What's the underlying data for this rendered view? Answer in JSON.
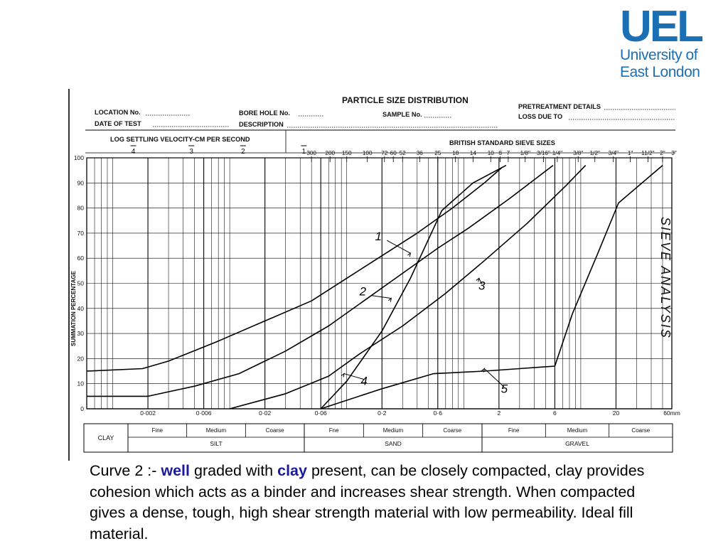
{
  "logo": {
    "mark": "UEL",
    "line1": "University of",
    "line2": "East London"
  },
  "caption": {
    "prefix": "Curve 2 :- ",
    "word1": "well",
    "mid": " graded with ",
    "word2": "clay",
    "rest": " present, can be closely compacted, clay provides cohesion which acts as a binder and increases shear strength. When compacted gives a dense, tough, high shear strength material with low permeability. Ideal fill material."
  },
  "form": {
    "title": "PARTICLE SIZE DISTRIBUTION",
    "location": "LOCATION No.",
    "date": "DATE OF TEST",
    "borehole": "BORE HOLE No.",
    "description": "DESCRIPTION",
    "sample": "SAMPLE No.",
    "pretreatment": "PRETREATMENT DETAILS",
    "loss": "LOSS DUE TO",
    "log_velocity_label": "LOG SETTLING VELOCITY-CM PER SECOND",
    "sieve_label": "BRITISH STANDARD SIEVE SIZES",
    "handwritten_side": "SIEVE ANALYSIS"
  },
  "chart_data": {
    "type": "line",
    "title": "PARTICLE SIZE DISTRIBUTION",
    "xlabel": "",
    "ylabel": "SUMMATION PERCENTAGE",
    "x_scale": "log",
    "x_unit": "mm",
    "xlim": [
      0.0006,
      60
    ],
    "ylim": [
      0,
      100
    ],
    "grid": true,
    "x_tick_labels": [
      {
        "value": 0.002,
        "label": "0·002"
      },
      {
        "value": 0.006,
        "label": "0·006"
      },
      {
        "value": 0.02,
        "label": "0·02"
      },
      {
        "value": 0.06,
        "label": "0·06"
      },
      {
        "value": 0.2,
        "label": "0·2"
      },
      {
        "value": 0.6,
        "label": "0·6"
      },
      {
        "value": 2,
        "label": "2"
      },
      {
        "value": 6,
        "label": "6"
      },
      {
        "value": 20,
        "label": "20"
      },
      {
        "value": 60,
        "label": "60mm"
      }
    ],
    "y_ticks": [
      0,
      10,
      20,
      30,
      40,
      50,
      60,
      70,
      80,
      90,
      100
    ],
    "log_velocity_ticks": [
      {
        "value": 0.0015,
        "label": "4"
      },
      {
        "value": 0.0047,
        "label": "3"
      },
      {
        "value": 0.013,
        "label": "2"
      },
      {
        "value": 0.043,
        "label": "1"
      }
    ],
    "sieve_ticks": [
      {
        "value": 0.05,
        "label": "300"
      },
      {
        "value": 0.072,
        "label": "200"
      },
      {
        "value": 0.1,
        "label": "150"
      },
      {
        "value": 0.15,
        "label": "100"
      },
      {
        "value": 0.21,
        "label": "72"
      },
      {
        "value": 0.25,
        "label": "60"
      },
      {
        "value": 0.3,
        "label": "52"
      },
      {
        "value": 0.42,
        "label": "36"
      },
      {
        "value": 0.6,
        "label": "25"
      },
      {
        "value": 0.85,
        "label": "18"
      },
      {
        "value": 1.2,
        "label": "14"
      },
      {
        "value": 1.7,
        "label": "10"
      },
      {
        "value": 2.05,
        "label": "8"
      },
      {
        "value": 2.4,
        "label": "7"
      },
      {
        "value": 3.35,
        "label": "1/8\""
      },
      {
        "value": 4.8,
        "label": "3/16\""
      },
      {
        "value": 6.3,
        "label": "1/4\""
      },
      {
        "value": 9.5,
        "label": "3/8\""
      },
      {
        "value": 13.2,
        "label": "1/2\""
      },
      {
        "value": 19,
        "label": "3/4\""
      },
      {
        "value": 26.5,
        "label": "1\""
      },
      {
        "value": 37.5,
        "label": "11/2\""
      },
      {
        "value": 50,
        "label": "2\""
      },
      {
        "value": 75,
        "label": "3\""
      }
    ],
    "series": [
      {
        "name": "1",
        "points": [
          [
            0.0006,
            15
          ],
          [
            0.0018,
            16
          ],
          [
            0.003,
            19
          ],
          [
            0.008,
            27
          ],
          [
            0.02,
            35
          ],
          [
            0.05,
            43
          ],
          [
            0.1,
            52
          ],
          [
            0.2,
            61
          ],
          [
            0.4,
            70
          ],
          [
            0.8,
            80
          ],
          [
            1.5,
            90
          ],
          [
            2.1,
            96
          ]
        ]
      },
      {
        "name": "2",
        "points": [
          [
            0.0006,
            5
          ],
          [
            0.002,
            5
          ],
          [
            0.005,
            9
          ],
          [
            0.012,
            14
          ],
          [
            0.03,
            23
          ],
          [
            0.07,
            33
          ],
          [
            0.15,
            44
          ],
          [
            0.3,
            54
          ],
          [
            0.6,
            64
          ],
          [
            1.1,
            72
          ],
          [
            2.5,
            84
          ],
          [
            5.8,
            97
          ]
        ]
      },
      {
        "name": "3",
        "points": [
          [
            0.01,
            0
          ],
          [
            0.03,
            6
          ],
          [
            0.07,
            13
          ],
          [
            0.13,
            22
          ],
          [
            0.3,
            33
          ],
          [
            0.7,
            46
          ],
          [
            1.5,
            59
          ],
          [
            3.5,
            74
          ],
          [
            7.5,
            89
          ],
          [
            11,
            97
          ]
        ]
      },
      {
        "name": "4",
        "points": [
          [
            0.06,
            0
          ],
          [
            0.1,
            11
          ],
          [
            0.2,
            31
          ],
          [
            0.35,
            52
          ],
          [
            0.65,
            79
          ],
          [
            1.2,
            90
          ],
          [
            2.3,
            97
          ]
        ]
      },
      {
        "name": "5",
        "points": [
          [
            0.06,
            0
          ],
          [
            0.2,
            8
          ],
          [
            0.55,
            14
          ],
          [
            1.5,
            15
          ],
          [
            3,
            16
          ],
          [
            6,
            17
          ],
          [
            8.5,
            38
          ],
          [
            14,
            62
          ],
          [
            21,
            82
          ],
          [
            50,
            97
          ]
        ]
      }
    ],
    "annotations": [
      {
        "text": "1",
        "target": [
          0.35,
          62
        ]
      },
      {
        "text": "2",
        "target": [
          0.24,
          44
        ]
      },
      {
        "text": "3",
        "target": [
          1.35,
          52
        ]
      },
      {
        "text": "4",
        "target": [
          0.095,
          14
        ]
      },
      {
        "text": "5",
        "target": [
          1.5,
          16
        ]
      }
    ]
  },
  "classification": {
    "fractions": [
      {
        "name": "CLAY",
        "subs": []
      },
      {
        "name": "SILT",
        "subs": [
          "Fine",
          "Medium",
          "Coarse"
        ]
      },
      {
        "name": "SAND",
        "subs": [
          "Fne",
          "Medium",
          "Coarse"
        ]
      },
      {
        "name": "GRAVEL",
        "subs": [
          "Fine",
          "Medium",
          "Coarse"
        ]
      }
    ]
  }
}
